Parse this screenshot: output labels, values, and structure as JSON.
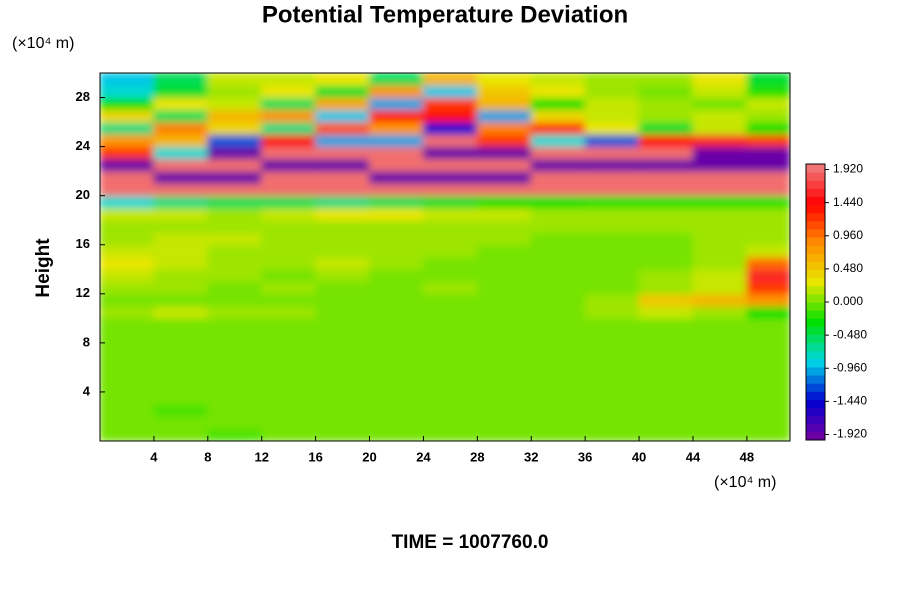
{
  "chart_data": {
    "type": "heatmap",
    "title": "Potential Temperature Deviation",
    "ylabel": "Height",
    "y_unit": "(×10⁴ m)",
    "x_unit": "(×10⁴ m)",
    "footer": "TIME = 1007760.0",
    "xlim": [
      0,
      51.2
    ],
    "ylim": [
      0,
      30
    ],
    "xticks": [
      4,
      8,
      12,
      16,
      20,
      24,
      28,
      32,
      36,
      40,
      44,
      48
    ],
    "yticks": [
      4,
      8,
      12,
      16,
      20,
      24,
      28
    ],
    "xbins": [
      0,
      4,
      8,
      12,
      16,
      20,
      24,
      28,
      32,
      36,
      40,
      44,
      48,
      51.2
    ],
    "ybins": [
      0,
      1,
      2,
      3,
      4,
      5,
      6,
      7,
      8,
      9,
      10,
      11,
      12,
      13,
      14,
      15,
      16,
      17,
      18,
      19,
      20,
      21,
      22,
      23,
      24,
      25,
      26,
      27,
      28,
      29,
      30
    ],
    "clim": [
      -2,
      2
    ],
    "colors": [
      "#7a00a0",
      "#0000d0",
      "#00d8e8",
      "#00e000",
      "#e8e800",
      "#ff8c00",
      "#ff0000",
      "#f08080"
    ],
    "cticks": [
      {
        "value": 1.92,
        "label": "1.920"
      },
      {
        "value": 1.44,
        "label": "1.440"
      },
      {
        "value": 0.96,
        "label": "0.960"
      },
      {
        "value": 0.48,
        "label": "0.480"
      },
      {
        "value": 0,
        "label": "0.000"
      },
      {
        "value": -0.48,
        "label": "-0.480"
      },
      {
        "value": -0.96,
        "label": "-0.960"
      },
      {
        "value": -1.44,
        "label": "-1.440"
      },
      {
        "value": -1.92,
        "label": "-1.920"
      }
    ],
    "z": [
      [
        0,
        0,
        -0.1,
        0,
        0,
        0,
        0,
        0,
        0,
        0,
        0,
        0,
        0
      ],
      [
        0,
        0,
        0,
        0,
        0,
        0,
        0,
        0,
        0,
        0,
        0,
        0,
        0
      ],
      [
        0,
        -0.1,
        0,
        0,
        0,
        0,
        0,
        0,
        0,
        0,
        0,
        0,
        0
      ],
      [
        0,
        0,
        0,
        0,
        0,
        0,
        0,
        0,
        0,
        0,
        0,
        0,
        0
      ],
      [
        0,
        0,
        0,
        0,
        0,
        0,
        0,
        0,
        0,
        0,
        0,
        0,
        0
      ],
      [
        0,
        0,
        0,
        0,
        0,
        0,
        0,
        0,
        0,
        0,
        0,
        0,
        0
      ],
      [
        0,
        0,
        0,
        0,
        0,
        0,
        0,
        0,
        0,
        0,
        0,
        0,
        0
      ],
      [
        0,
        0,
        0,
        0,
        0,
        0,
        0,
        0,
        0,
        0,
        0,
        0,
        0
      ],
      [
        0,
        0,
        0,
        0,
        0,
        0,
        0,
        0,
        0,
        0,
        0,
        0,
        0
      ],
      [
        0,
        0,
        0,
        0,
        0,
        0,
        0,
        0,
        0,
        0,
        0,
        0,
        0
      ],
      [
        0.1,
        0.2,
        0.1,
        0.1,
        0,
        0,
        0,
        0,
        0,
        0.1,
        0.2,
        0.1,
        -0.3
      ],
      [
        0,
        0,
        0,
        0,
        0,
        0,
        0,
        0,
        0,
        0.1,
        0.5,
        0.6,
        0.8
      ],
      [
        0.1,
        0.1,
        0,
        0.1,
        0,
        0,
        0.1,
        0,
        0,
        0,
        0.1,
        0.2,
        1.2
      ],
      [
        0.2,
        0.1,
        0.1,
        0,
        0.1,
        0,
        0,
        0,
        0,
        0,
        0.1,
        0.2,
        1.6
      ],
      [
        0.3,
        0.2,
        0.1,
        0.1,
        0.2,
        0.1,
        0,
        0,
        0,
        0,
        0,
        0.1,
        1.0
      ],
      [
        0.2,
        0.2,
        0.1,
        0.1,
        0.1,
        0.1,
        0.1,
        0,
        0,
        0,
        0,
        0.1,
        0.2
      ],
      [
        0.1,
        0.2,
        0.2,
        0.1,
        0.1,
        0.1,
        0.1,
        0.1,
        0,
        0,
        0,
        0.1,
        0.1
      ],
      [
        0.1,
        0.1,
        0.1,
        0.1,
        0.1,
        0.1,
        0.1,
        0.1,
        0.1,
        0.1,
        0.1,
        0.1,
        0.1
      ],
      [
        0.2,
        0.2,
        0.1,
        0.2,
        0.3,
        0.3,
        0.2,
        0.2,
        0.1,
        0.1,
        0.1,
        0.1,
        0.1
      ],
      [
        -0.8,
        -0.6,
        -0.5,
        -0.5,
        -0.6,
        -0.5,
        -0.4,
        -0.3,
        -0.3,
        -0.2,
        -0.2,
        -0.2,
        -0.2
      ],
      [
        1.92,
        1.92,
        1.92,
        1.92,
        1.92,
        1.92,
        1.92,
        1.92,
        1.92,
        1.92,
        1.92,
        1.92,
        1.92
      ],
      [
        1.92,
        -1.92,
        -1.92,
        1.92,
        1.92,
        -1.92,
        -1.92,
        -1.92,
        1.92,
        1.92,
        1.92,
        1.92,
        1.92
      ],
      [
        -1.92,
        1.92,
        1.92,
        -1.92,
        -1.92,
        1.92,
        1.92,
        1.92,
        -1.92,
        -1.92,
        -1.92,
        -1.92,
        -1.92
      ],
      [
        1.2,
        -0.8,
        -1.92,
        1.92,
        1.92,
        1.92,
        -1.92,
        -1.92,
        1.92,
        1.92,
        1.92,
        -1.92,
        -1.92
      ],
      [
        0.8,
        0.6,
        -1.2,
        1.5,
        -1.0,
        -1.0,
        1.92,
        1.2,
        -0.8,
        -1.2,
        1.4,
        1.6,
        1.2
      ],
      [
        -0.6,
        0.9,
        0.4,
        -0.6,
        1.1,
        0.8,
        -1.4,
        0.9,
        1.2,
        0.3,
        -0.4,
        0.2,
        -0.3
      ],
      [
        0.4,
        -0.5,
        0.6,
        0.8,
        -0.9,
        1.3,
        1.5,
        -1.0,
        0.4,
        0.2,
        0.1,
        0.2,
        0.1
      ],
      [
        -0.3,
        0.3,
        0.2,
        -0.5,
        0.7,
        -1.0,
        1.2,
        0.6,
        -0.3,
        0.2,
        0.1,
        0,
        0.2
      ],
      [
        -0.8,
        -0.4,
        0.1,
        0.3,
        -0.4,
        0.8,
        -0.9,
        0.5,
        0.3,
        0.1,
        0,
        0.2,
        -0.2
      ],
      [
        -0.9,
        -0.5,
        0.2,
        0.2,
        0.3,
        -0.5,
        0.6,
        0.3,
        0.2,
        0.1,
        0.1,
        0.3,
        -0.4
      ]
    ]
  }
}
